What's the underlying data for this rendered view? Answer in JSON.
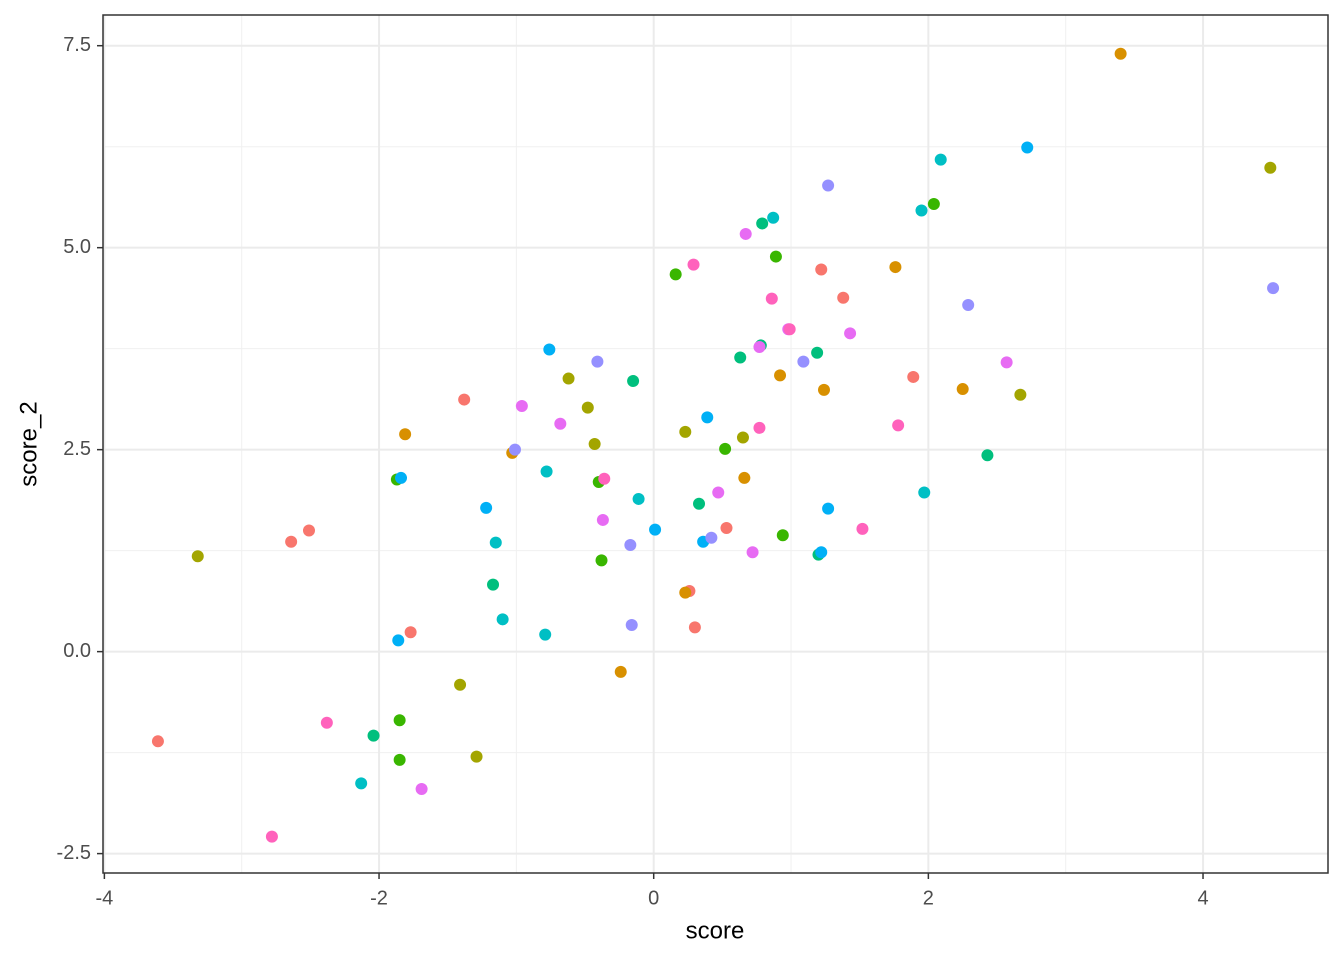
{
  "chart_data": {
    "type": "scatter",
    "x_label": "score",
    "y_label": "score_2",
    "xlim": [
      -4.01,
      4.91
    ],
    "ylim": [
      -2.74,
      7.88
    ],
    "xticks": [
      -4,
      -2,
      0,
      2,
      4
    ],
    "yticks": [
      -2.5,
      {
        "value": 0,
        "label": "0.0"
      },
      2.5,
      {
        "value": 5,
        "label": "5.0"
      },
      7.5
    ],
    "grid": true,
    "minor_grid": true,
    "series": [
      {
        "color": "#F8766D",
        "x": [
          -3.61,
          -2.64,
          -2.51,
          -1.77,
          -1.38,
          0.3,
          0.26,
          0.53,
          1.22,
          1.38,
          1.89
        ],
        "y": [
          -1.11,
          1.36,
          1.5,
          0.24,
          3.12,
          0.3,
          0.75,
          1.53,
          4.73,
          4.38,
          3.4
        ]
      },
      {
        "color": "#D89000",
        "x": [
          3.4,
          -1.81,
          -1.03,
          -0.24,
          0.23,
          0.66,
          0.92,
          1.24,
          1.76,
          2.25
        ],
        "y": [
          7.4,
          2.69,
          2.46,
          -0.25,
          0.73,
          2.15,
          3.42,
          3.24,
          4.76,
          3.25
        ]
      },
      {
        "color": "#A3A500",
        "x": [
          -3.32,
          -1.41,
          -1.29,
          -0.62,
          -0.48,
          -0.43,
          0.23,
          0.65,
          2.67,
          4.49
        ],
        "y": [
          1.18,
          -0.41,
          -1.3,
          3.38,
          3.02,
          2.57,
          2.72,
          2.65,
          3.18,
          5.99
        ]
      },
      {
        "color": "#39B600",
        "x": [
          -1.85,
          -1.85,
          -1.87,
          -0.4,
          -0.38,
          0.16,
          0.52,
          0.89,
          0.94,
          2.04
        ],
        "y": [
          -1.34,
          -0.85,
          2.13,
          2.1,
          1.13,
          4.67,
          2.51,
          4.89,
          1.44,
          5.54
        ]
      },
      {
        "color": "#00BF7D",
        "x": [
          -2.04,
          -1.17,
          -0.15,
          0.33,
          0.63,
          0.79,
          0.78,
          1.19,
          1.2,
          2.43
        ],
        "y": [
          -1.04,
          0.83,
          3.35,
          1.83,
          3.64,
          5.3,
          3.79,
          3.7,
          1.2,
          2.43
        ]
      },
      {
        "color": "#00BFC4",
        "x": [
          -2.13,
          -1.1,
          -1.15,
          -0.79,
          -0.78,
          -0.11,
          0.87,
          1.95,
          1.97,
          2.09
        ],
        "y": [
          -1.63,
          0.4,
          1.35,
          0.21,
          2.23,
          1.89,
          5.37,
          5.46,
          1.97,
          6.09
        ]
      },
      {
        "color": "#00B0F6",
        "x": [
          -1.86,
          -1.84,
          -1.22,
          -0.76,
          0.01,
          0.36,
          0.39,
          1.22,
          1.27,
          2.72
        ],
        "y": [
          0.14,
          2.15,
          1.78,
          3.74,
          1.51,
          1.36,
          2.9,
          1.23,
          1.77,
          6.24
        ]
      },
      {
        "color": "#9590FF",
        "x": [
          -1.01,
          -0.41,
          -0.17,
          -0.16,
          0.42,
          1.09,
          1.27,
          2.29,
          4.51
        ],
        "y": [
          2.5,
          3.59,
          1.32,
          0.33,
          1.41,
          3.59,
          5.77,
          4.29,
          4.5
        ]
      },
      {
        "color": "#E76BF3",
        "x": [
          -1.69,
          -0.96,
          -0.68,
          -0.37,
          0.47,
          0.67,
          0.72,
          0.77,
          0.98,
          1.43,
          2.57
        ],
        "y": [
          -1.7,
          3.04,
          2.82,
          1.63,
          1.97,
          5.17,
          1.23,
          3.77,
          3.99,
          3.94,
          3.58
        ]
      },
      {
        "color": "#FF62BC",
        "x": [
          -2.78,
          -2.38,
          -0.36,
          0.29,
          0.77,
          0.86,
          0.99,
          1.52,
          1.78
        ],
        "y": [
          -2.29,
          -0.88,
          2.14,
          4.79,
          2.77,
          4.37,
          3.99,
          1.52,
          2.8
        ]
      }
    ]
  }
}
